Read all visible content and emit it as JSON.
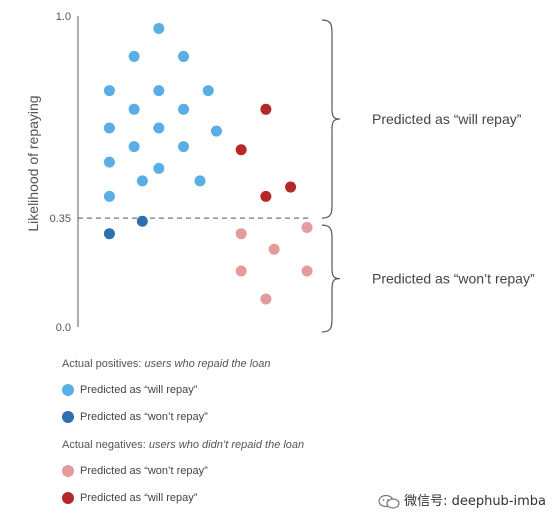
{
  "chart_data": {
    "type": "scatter",
    "ylabel": "Likelihood of repaying",
    "ylim": [
      0.0,
      1.0
    ],
    "yticks": [
      "1.0",
      "0.35",
      "0.0"
    ],
    "threshold": 0.35,
    "grid": false,
    "series": [
      {
        "name": "Predicted as “will repay”",
        "color": "#5aaee6",
        "points": [
          [
            1.7,
            0.96
          ],
          [
            1.4,
            0.87
          ],
          [
            2.0,
            0.87
          ],
          [
            1.1,
            0.76
          ],
          [
            1.7,
            0.76
          ],
          [
            2.3,
            0.76
          ],
          [
            1.4,
            0.7
          ],
          [
            2.0,
            0.7
          ],
          [
            1.1,
            0.64
          ],
          [
            1.7,
            0.64
          ],
          [
            2.4,
            0.63
          ],
          [
            1.4,
            0.58
          ],
          [
            2.0,
            0.58
          ],
          [
            1.1,
            0.53
          ],
          [
            1.7,
            0.51
          ],
          [
            1.5,
            0.47
          ],
          [
            2.2,
            0.47
          ],
          [
            1.1,
            0.42
          ]
        ]
      },
      {
        "name": "Predicted as “won’t repay”",
        "color": "#2d6fb0",
        "points": [
          [
            1.5,
            0.34
          ],
          [
            1.1,
            0.3
          ]
        ]
      },
      {
        "name": "Predicted as “won’t repay”",
        "color": "#e39b9b",
        "points": [
          [
            3.5,
            0.32
          ],
          [
            2.7,
            0.3
          ],
          [
            3.1,
            0.25
          ],
          [
            2.7,
            0.18
          ],
          [
            3.5,
            0.18
          ],
          [
            3.0,
            0.09
          ]
        ]
      },
      {
        "name": "Predicted as “will repay”",
        "color": "#b52828",
        "points": [
          [
            3.0,
            0.7
          ],
          [
            2.7,
            0.57
          ],
          [
            3.3,
            0.45
          ],
          [
            3.0,
            0.42
          ]
        ]
      }
    ],
    "brackets": [
      {
        "label": "Predicted as “will repay”",
        "from": 0.35,
        "to": 1.0
      },
      {
        "label": "Predicted as “won’t repay”",
        "from": 0.0,
        "to": 0.35
      }
    ]
  },
  "legend": {
    "positives_heading_plain": "Actual positives: ",
    "positives_heading_italic": "users who repaid the loan",
    "positives_items": [
      "Predicted as “will repay”",
      "Predicted as “won’t repay”"
    ],
    "negatives_heading_plain": "Actual negatives: ",
    "negatives_heading_italic": "users who didn’t repaid the loan",
    "negatives_items": [
      "Predicted as “won’t repay”",
      "Predicted as “will repay”"
    ],
    "colors": {
      "pos_will": "#5aaee6",
      "pos_wont": "#2d6fb0",
      "neg_wont": "#e39b9b",
      "neg_will": "#b52828"
    }
  },
  "watermark": {
    "text": "微信号: deephub-imba",
    "icon": "wechat-icon"
  }
}
